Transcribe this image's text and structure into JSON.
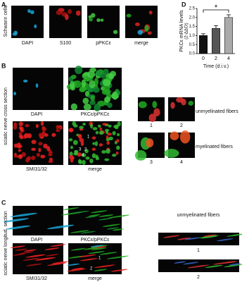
{
  "panels": {
    "a": {
      "label": "A",
      "side": "Schwann cells",
      "images": [
        "DAPI",
        "S100",
        "pPKCε",
        "merge"
      ]
    },
    "b": {
      "label": "B",
      "side": "sciatic nerve cross section",
      "images": [
        "DAPI",
        "PKCε/pPKCε",
        "SMI31/32",
        "merge"
      ],
      "insets": [
        "1",
        "2",
        "3",
        "4"
      ],
      "notes": [
        "unmyelinated fibers",
        "myelinated fibers"
      ],
      "arrows": [
        "1",
        "2",
        "3",
        "4"
      ]
    },
    "c": {
      "label": "C",
      "side": "sciatic nerve longitud. section",
      "images": [
        "DAPI",
        "PKCε/pPKCε",
        "SMI31/32",
        "merge"
      ],
      "insets": [
        "1",
        "2"
      ],
      "notes": [
        "unmyelinated fibers"
      ],
      "arrows": [
        "1",
        "2"
      ]
    },
    "d": {
      "label": "D"
    }
  },
  "chart_data": {
    "type": "bar",
    "y_label": "PKCε mRNA levels",
    "y_unit": "(2-ΔΔCt)",
    "x_label": "Time (d.i.v.)",
    "categories": [
      "0",
      "2",
      "4"
    ],
    "values": [
      1.0,
      1.4,
      2.0
    ],
    "errors": [
      0.1,
      0.15,
      0.15
    ],
    "colors": [
      "#111111",
      "#555555",
      "#aaaaaa"
    ],
    "significance": "*",
    "ylim": [
      0,
      2.5
    ],
    "yticks": [
      {
        "value": 0,
        "label": "0.0"
      },
      {
        "value": 0.5,
        "label": "0.5"
      },
      {
        "value": 1,
        "label": "1.0"
      },
      {
        "value": 1.5,
        "label": "1.5"
      },
      {
        "value": 2,
        "label": "2.0"
      },
      {
        "value": 2.5,
        "label": "2.5"
      }
    ]
  }
}
